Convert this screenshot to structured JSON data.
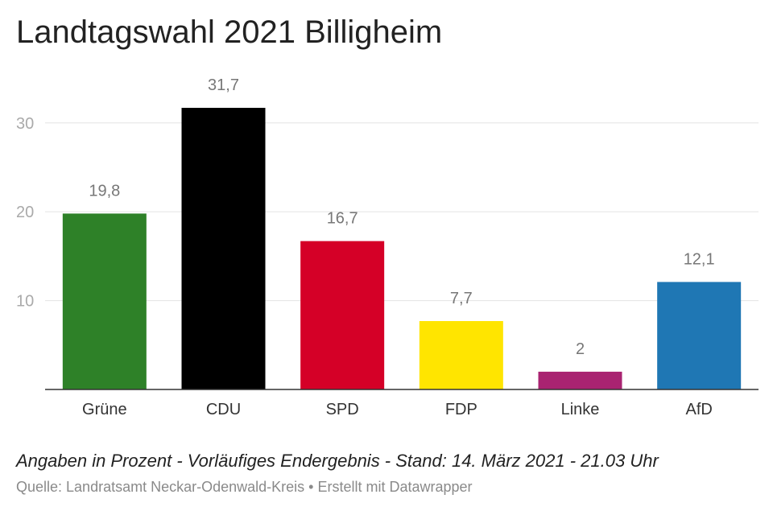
{
  "chart_data": {
    "type": "bar",
    "title": "Landtagswahl 2021 Billigheim",
    "categories": [
      "Grüne",
      "CDU",
      "SPD",
      "FDP",
      "Linke",
      "AfD"
    ],
    "values": [
      19.8,
      31.7,
      16.7,
      7.7,
      2,
      12.1
    ],
    "value_labels": [
      "19,8",
      "31,7",
      "16,7",
      "7,7",
      "2",
      "12,1"
    ],
    "colors": [
      "#2e8128",
      "#000000",
      "#d50027",
      "#ffe500",
      "#a92371",
      "#1f77b4"
    ],
    "yticks": [
      10,
      20,
      30
    ],
    "ylim": [
      0,
      31.7
    ],
    "grid": true,
    "xlabel": "",
    "ylabel": ""
  },
  "notes": "Angaben in Prozent - Vorläufiges Endergebnis - Stand: 14. März 2021 - 21.03 Uhr",
  "source": "Quelle: Landratsamt Neckar-Odenwald-Kreis • Erstellt mit Datawrapper"
}
